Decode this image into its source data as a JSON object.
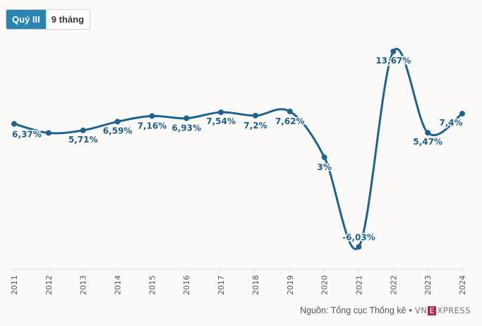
{
  "toggle": {
    "options": [
      "Quý III",
      "9 tháng"
    ],
    "active": "Quý III"
  },
  "colors": {
    "line": "#1d6390",
    "active_button": "#2a84b2",
    "label": "#1d5f85",
    "logo_accent": "#a52754"
  },
  "chart_data": {
    "type": "line",
    "title": "",
    "xlabel": "",
    "ylabel": "",
    "categories": [
      "2011",
      "2012",
      "2013",
      "2014",
      "2015",
      "2016",
      "2017",
      "2018",
      "2019",
      "2020",
      "2021",
      "2022",
      "2023",
      "2024"
    ],
    "series": [
      {
        "name": "Quý III",
        "values": [
          6.37,
          5.45,
          5.71,
          6.59,
          7.16,
          6.93,
          7.54,
          7.2,
          7.62,
          3,
          -6.03,
          13.67,
          5.47,
          7.4
        ],
        "labels": [
          "6,37%",
          "",
          "5,71%",
          "6,59%",
          "7,16%",
          "6,93%",
          "7,54%",
          "7,2%",
          "7,62%",
          "3%",
          "-6,03%",
          "13,67%",
          "5,47%",
          "7,4%"
        ]
      }
    ],
    "ylim": [
      -8,
      16
    ],
    "grid": false,
    "legend": "none"
  },
  "footer": {
    "source": "Nguồn: Tổng cục Thống kê",
    "separator": "•",
    "logo_text": "VNEXPRESS",
    "logo_left": "VN",
    "logo_box": "E",
    "logo_right": "XPRESS"
  }
}
